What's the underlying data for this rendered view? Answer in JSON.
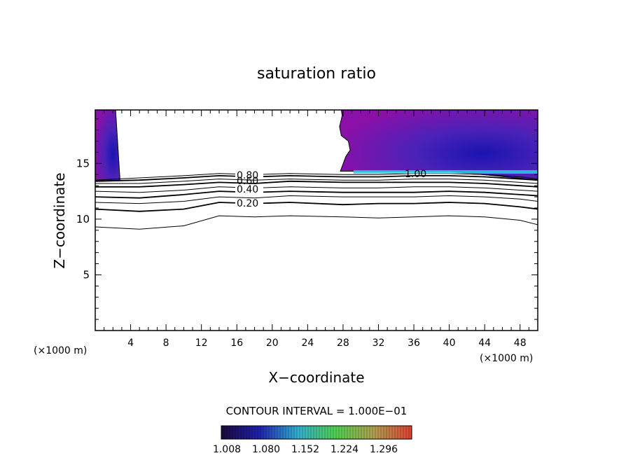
{
  "chart_data": {
    "type": "contour",
    "title": "saturation ratio",
    "xlabel": "X−coordinate",
    "ylabel": "Z−coordinate",
    "x_unit_label": "(×1000 m)",
    "x_ticks": [
      4,
      8,
      12,
      16,
      20,
      24,
      28,
      32,
      36,
      40,
      44,
      48
    ],
    "y_ticks": [
      5,
      10,
      15
    ],
    "xlim": [
      0,
      50
    ],
    "ylim": [
      0,
      19.8
    ],
    "contour_interval_label": "CONTOUR INTERVAL = 1.000E−01",
    "contour_labels": [
      "0.80",
      "0.60",
      "0.40",
      "0.20",
      "1.00"
    ],
    "colorbar": {
      "tick_labels": [
        "1.008",
        "1.080",
        "1.152",
        "1.224",
        "1.296"
      ],
      "colors": [
        "#1a0a3a",
        "#2020b0",
        "#30b0d0",
        "#50d050",
        "#b0a050",
        "#e04030"
      ]
    },
    "contours": [
      {
        "level": 0.1,
        "points": [
          [
            0,
            9.3
          ],
          [
            5,
            9.1
          ],
          [
            10,
            9.4
          ],
          [
            14,
            10.3
          ],
          [
            18,
            10.2
          ],
          [
            22,
            10.3
          ],
          [
            28,
            10.2
          ],
          [
            32,
            10.1
          ],
          [
            36,
            10.2
          ],
          [
            40,
            10.3
          ],
          [
            44,
            10.2
          ],
          [
            48,
            9.9
          ],
          [
            50,
            9.5
          ]
        ]
      },
      {
        "level": 0.2,
        "points": [
          [
            0,
            10.9
          ],
          [
            5,
            10.7
          ],
          [
            10,
            10.9
          ],
          [
            14,
            11.5
          ],
          [
            18,
            11.4
          ],
          [
            22,
            11.5
          ],
          [
            28,
            11.3
          ],
          [
            32,
            11.4
          ],
          [
            36,
            11.4
          ],
          [
            40,
            11.5
          ],
          [
            44,
            11.4
          ],
          [
            48,
            11.1
          ],
          [
            50,
            10.9
          ]
        ]
      },
      {
        "level": 0.3,
        "points": [
          [
            0,
            11.5
          ],
          [
            5,
            11.4
          ],
          [
            10,
            11.6
          ],
          [
            14,
            12.0
          ],
          [
            18,
            11.9
          ],
          [
            22,
            12.1
          ],
          [
            28,
            12.0
          ],
          [
            32,
            12.0
          ],
          [
            36,
            12.0
          ],
          [
            40,
            12.1
          ],
          [
            44,
            12.0
          ],
          [
            48,
            11.8
          ],
          [
            50,
            11.6
          ]
        ]
      },
      {
        "level": 0.4,
        "points": [
          [
            0,
            12.0
          ],
          [
            5,
            11.9
          ],
          [
            10,
            12.2
          ],
          [
            14,
            12.5
          ],
          [
            18,
            12.4
          ],
          [
            22,
            12.5
          ],
          [
            28,
            12.4
          ],
          [
            32,
            12.4
          ],
          [
            36,
            12.4
          ],
          [
            40,
            12.5
          ],
          [
            44,
            12.4
          ],
          [
            48,
            12.2
          ],
          [
            50,
            12.1
          ]
        ]
      },
      {
        "level": 0.5,
        "points": [
          [
            0,
            12.5
          ],
          [
            5,
            12.4
          ],
          [
            10,
            12.6
          ],
          [
            14,
            12.9
          ],
          [
            18,
            12.8
          ],
          [
            22,
            12.9
          ],
          [
            28,
            12.8
          ],
          [
            32,
            12.8
          ],
          [
            36,
            12.9
          ],
          [
            40,
            12.9
          ],
          [
            44,
            12.8
          ],
          [
            48,
            12.6
          ],
          [
            50,
            12.5
          ]
        ]
      },
      {
        "level": 0.6,
        "points": [
          [
            0,
            12.9
          ],
          [
            5,
            12.9
          ],
          [
            10,
            13.1
          ],
          [
            14,
            13.3
          ],
          [
            18,
            13.2
          ],
          [
            22,
            13.4
          ],
          [
            28,
            13.3
          ],
          [
            32,
            13.3
          ],
          [
            36,
            13.3
          ],
          [
            40,
            13.3
          ],
          [
            44,
            13.2
          ],
          [
            48,
            13.0
          ],
          [
            50,
            12.9
          ]
        ]
      },
      {
        "level": 0.7,
        "points": [
          [
            0,
            13.2
          ],
          [
            5,
            13.2
          ],
          [
            10,
            13.4
          ],
          [
            14,
            13.6
          ],
          [
            18,
            13.5
          ],
          [
            22,
            13.6
          ],
          [
            28,
            13.5
          ],
          [
            32,
            13.5
          ],
          [
            36,
            13.6
          ],
          [
            40,
            13.6
          ],
          [
            44,
            13.5
          ],
          [
            48,
            13.3
          ],
          [
            50,
            13.2
          ]
        ]
      },
      {
        "level": 0.8,
        "points": [
          [
            0,
            13.4
          ],
          [
            5,
            13.5
          ],
          [
            10,
            13.7
          ],
          [
            14,
            13.9
          ],
          [
            18,
            13.8
          ],
          [
            22,
            13.9
          ],
          [
            28,
            13.8
          ],
          [
            32,
            13.8
          ],
          [
            36,
            13.9
          ],
          [
            40,
            13.9
          ],
          [
            44,
            13.8
          ],
          [
            48,
            13.6
          ],
          [
            50,
            13.5
          ]
        ]
      },
      {
        "level": 0.9,
        "points": [
          [
            0,
            13.5
          ],
          [
            5,
            13.7
          ],
          [
            10,
            13.9
          ],
          [
            14,
            14.1
          ],
          [
            18,
            14.0
          ],
          [
            22,
            14.1
          ],
          [
            28,
            14.0
          ],
          [
            32,
            14.0
          ],
          [
            36,
            14.1
          ],
          [
            40,
            14.1
          ],
          [
            44,
            14.0
          ],
          [
            48,
            13.8
          ],
          [
            50,
            13.6
          ]
        ]
      }
    ],
    "supersaturated_regions": [
      {
        "points": [
          [
            0,
            19.8
          ],
          [
            2.3,
            19.8
          ],
          [
            2.8,
            13.5
          ],
          [
            0,
            13.4
          ]
        ]
      },
      {
        "points": [
          [
            27.8,
            19.8
          ],
          [
            50,
            19.8
          ],
          [
            50,
            13.5
          ],
          [
            45,
            13.9
          ],
          [
            40,
            14.3
          ],
          [
            35,
            14.3
          ],
          [
            30,
            14.3
          ],
          [
            27.7,
            14.3
          ],
          [
            28.3,
            15.6
          ],
          [
            28.8,
            16.2
          ],
          [
            28.6,
            17.0
          ],
          [
            27.8,
            17.5
          ],
          [
            27.6,
            18.3
          ],
          [
            27.9,
            19.3
          ]
        ]
      }
    ]
  }
}
